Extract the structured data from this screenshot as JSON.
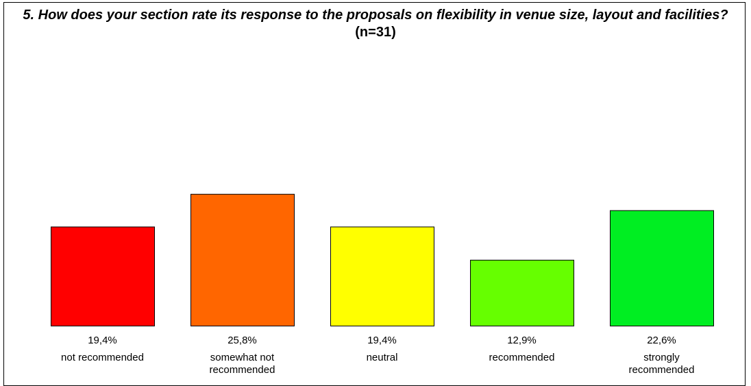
{
  "chart_data": {
    "type": "bar",
    "title": "5. How does your section rate its response to the proposals on flexibility in venue size, layout and facilities?",
    "subtitle": "(n=31)",
    "categories": [
      "not recommended",
      "somewhat not recommended",
      "neutral",
      "recommended",
      "strongly recommended"
    ],
    "values": [
      19.4,
      25.8,
      19.4,
      12.9,
      22.6
    ],
    "value_labels": [
      "19,4%",
      "25,8%",
      "19,4%",
      "12,9%",
      "22,6%"
    ],
    "colors": [
      "#ff0000",
      "#ff6600",
      "#ffff00",
      "#66ff00",
      "#00ee22"
    ],
    "xlabel": "",
    "ylabel": "",
    "ylim": [
      0,
      100
    ],
    "grid": false,
    "legend": "none"
  }
}
